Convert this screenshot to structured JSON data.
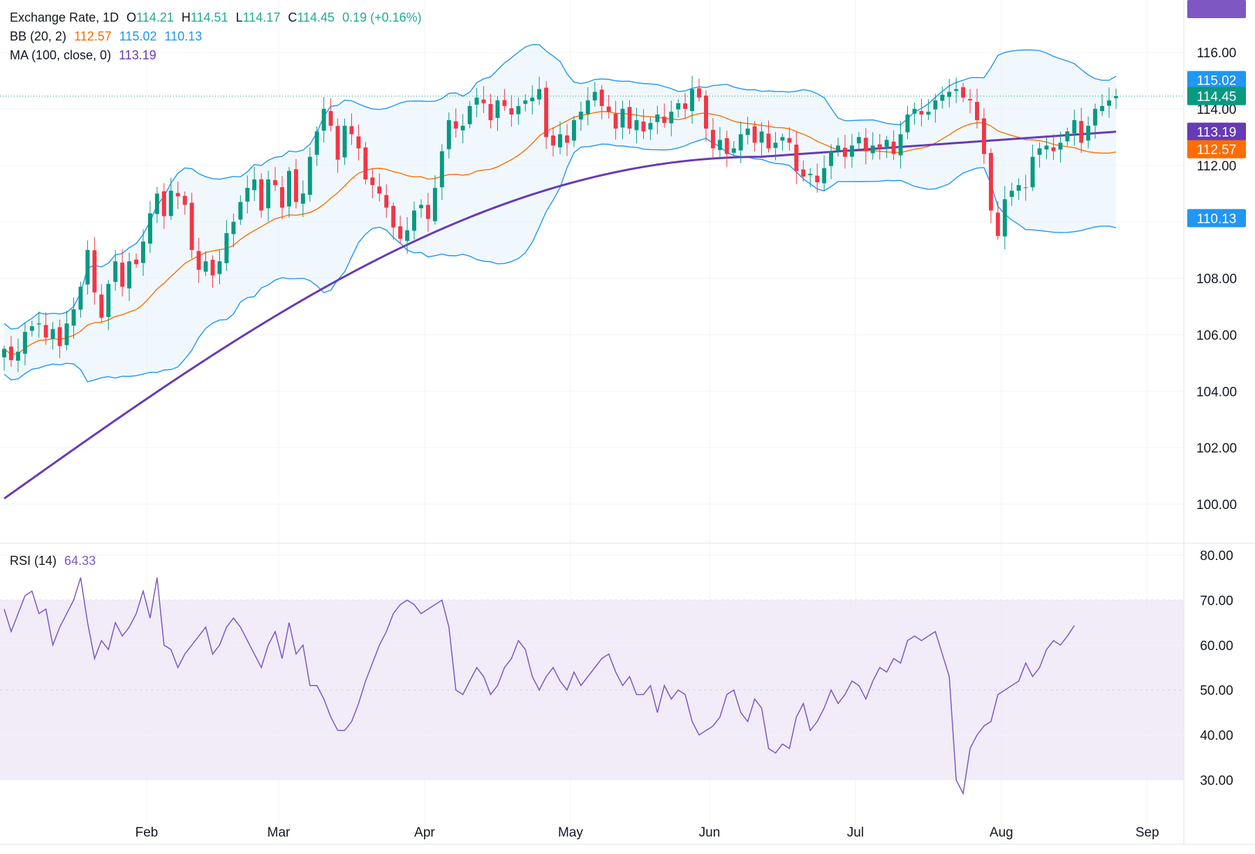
{
  "legend": {
    "symbol": "Exchange Rate, 1D",
    "open_label": "O",
    "open": "114.21",
    "high_label": "H",
    "high": "114.51",
    "low_label": "L",
    "low": "114.17",
    "close_label": "C",
    "close": "114.45",
    "change": "0.19 (+0.16%)",
    "bb_label": "BB (20, 2)",
    "bb_mid": "112.57",
    "bb_upper": "115.02",
    "bb_lower": "110.13",
    "ma_label": "MA (100, close, 0)",
    "ma_value": "113.19",
    "rsi_label": "RSI (14)",
    "rsi_value": "64.33"
  },
  "colors": {
    "up": "#089981",
    "down": "#f23645",
    "bb_band": "#2196f3",
    "bb_mid": "#ff6d00",
    "bb_fill": "#e3f2fd",
    "ma": "#673ab7",
    "rsi": "#7e57c2",
    "rsi_fill": "#ede7f6",
    "grid": "#f0f3fa",
    "text": "#131722"
  },
  "chart_data": {
    "type": "candlestick",
    "price_axis": {
      "ylim": [
        99,
        117
      ],
      "ticks": [
        "100.00",
        "102.00",
        "104.00",
        "106.00",
        "108.00",
        "110.00",
        "112.00",
        "114.00",
        "116.00"
      ]
    },
    "price_badges": [
      {
        "label": "115.02",
        "value": 115.02,
        "color": "#2196f3"
      },
      {
        "label": "114.45",
        "value": 114.45,
        "color": "#089981"
      },
      {
        "label": "113.19",
        "value": 113.19,
        "color": "#673ab7"
      },
      {
        "label": "112.57",
        "value": 112.57,
        "color": "#ff6d00"
      },
      {
        "label": "110.13",
        "value": 110.13,
        "color": "#2196f3"
      }
    ],
    "rsi_axis": {
      "ylim": [
        25,
        81
      ],
      "ticks": [
        "30.00",
        "40.00",
        "50.00",
        "60.00",
        "70.00",
        "80.00"
      ],
      "levels": [
        30,
        50,
        70
      ],
      "badge": "64.33"
    },
    "x_axis": {
      "months": [
        "Feb",
        "Mar",
        "Apr",
        "May",
        "Jun",
        "Jul",
        "Aug",
        "Sep"
      ]
    },
    "close_series": [
      105.5,
      105.1,
      105.4,
      106.1,
      106.3,
      106.4,
      105.9,
      106.2,
      105.6,
      106.4,
      106.9,
      107.7,
      109.0,
      107.5,
      106.6,
      107.8,
      108.6,
      107.7,
      108.6,
      108.5,
      109.3,
      110.3,
      111.0,
      110.2,
      111.1,
      110.9,
      110.6,
      109.0,
      108.3,
      108.6,
      108.1,
      108.6,
      109.6,
      110.0,
      110.7,
      111.2,
      111.5,
      110.4,
      111.5,
      111.3,
      110.5,
      111.8,
      110.7,
      111.0,
      112.3,
      113.2,
      114.0,
      113.4,
      112.2,
      113.4,
      113.1,
      112.6,
      111.5,
      111.3,
      111.0,
      110.5,
      109.8,
      109.4,
      109.7,
      110.4,
      110.6,
      110.1,
      111.2,
      112.5,
      113.6,
      113.3,
      113.4,
      114.1,
      114.4,
      114.2,
      113.6,
      114.3,
      114.1,
      113.8,
      114.1,
      114.3,
      114.4,
      114.7,
      113.0,
      112.7,
      113.1,
      112.8,
      113.6,
      113.9,
      114.3,
      114.6,
      114.1,
      113.9,
      113.3,
      114.0,
      113.3,
      113.6,
      113.2,
      113.5,
      113.8,
      113.5,
      113.9,
      114.2,
      114.0,
      114.7,
      114.4,
      113.3,
      112.6,
      112.9,
      112.4,
      112.6,
      113.1,
      113.3,
      112.8,
      113.2,
      112.6,
      112.8,
      113.0,
      112.8,
      111.8,
      111.6,
      111.7,
      111.4,
      111.9,
      112.5,
      112.7,
      112.3,
      112.7,
      113.0,
      112.5,
      112.7,
      112.6,
      112.9,
      112.4,
      113.1,
      113.8,
      114.0,
      113.8,
      113.9,
      114.3,
      114.5,
      114.6,
      114.7,
      114.4,
      114.3,
      113.6,
      112.4,
      110.4,
      109.5,
      110.8,
      111.1,
      111.3,
      111.2,
      112.3,
      112.6,
      112.7,
      112.5,
      112.8,
      113.2,
      113.6,
      112.8,
      113.4,
      114.0,
      114.1,
      114.3,
      114.45
    ],
    "rsi_series": [
      68,
      63,
      67,
      71,
      72,
      67,
      68,
      60,
      64,
      67,
      70,
      75,
      65,
      57,
      61,
      59,
      65,
      62,
      64,
      67,
      72,
      66,
      75,
      60,
      59,
      55,
      58,
      60,
      62,
      64,
      58,
      60,
      64,
      66,
      64,
      61,
      58,
      55,
      60,
      63,
      57,
      65,
      58,
      60,
      51,
      51,
      48,
      44,
      41,
      41,
      43,
      47,
      52,
      56,
      60,
      63,
      67,
      69,
      70,
      69,
      67,
      68,
      69,
      70,
      64,
      50,
      49,
      52,
      55,
      53,
      49,
      51,
      55,
      57,
      61,
      59,
      53,
      50,
      53,
      55,
      52,
      50,
      54,
      51,
      53,
      55,
      57,
      58,
      54,
      51,
      53,
      49,
      49,
      51,
      45,
      51,
      48,
      50,
      49,
      43,
      40,
      41,
      42,
      44,
      49,
      50,
      45,
      43,
      48,
      46,
      37,
      36,
      38,
      37,
      44,
      47,
      41,
      43,
      46,
      50,
      47,
      49,
      52,
      51,
      48,
      52,
      55,
      54,
      57,
      56,
      61,
      62,
      61,
      62,
      63,
      58,
      53,
      30,
      27,
      37,
      40,
      42,
      43,
      49,
      50,
      51,
      52,
      56,
      53,
      55,
      59,
      61,
      60,
      62,
      64.33
    ]
  }
}
